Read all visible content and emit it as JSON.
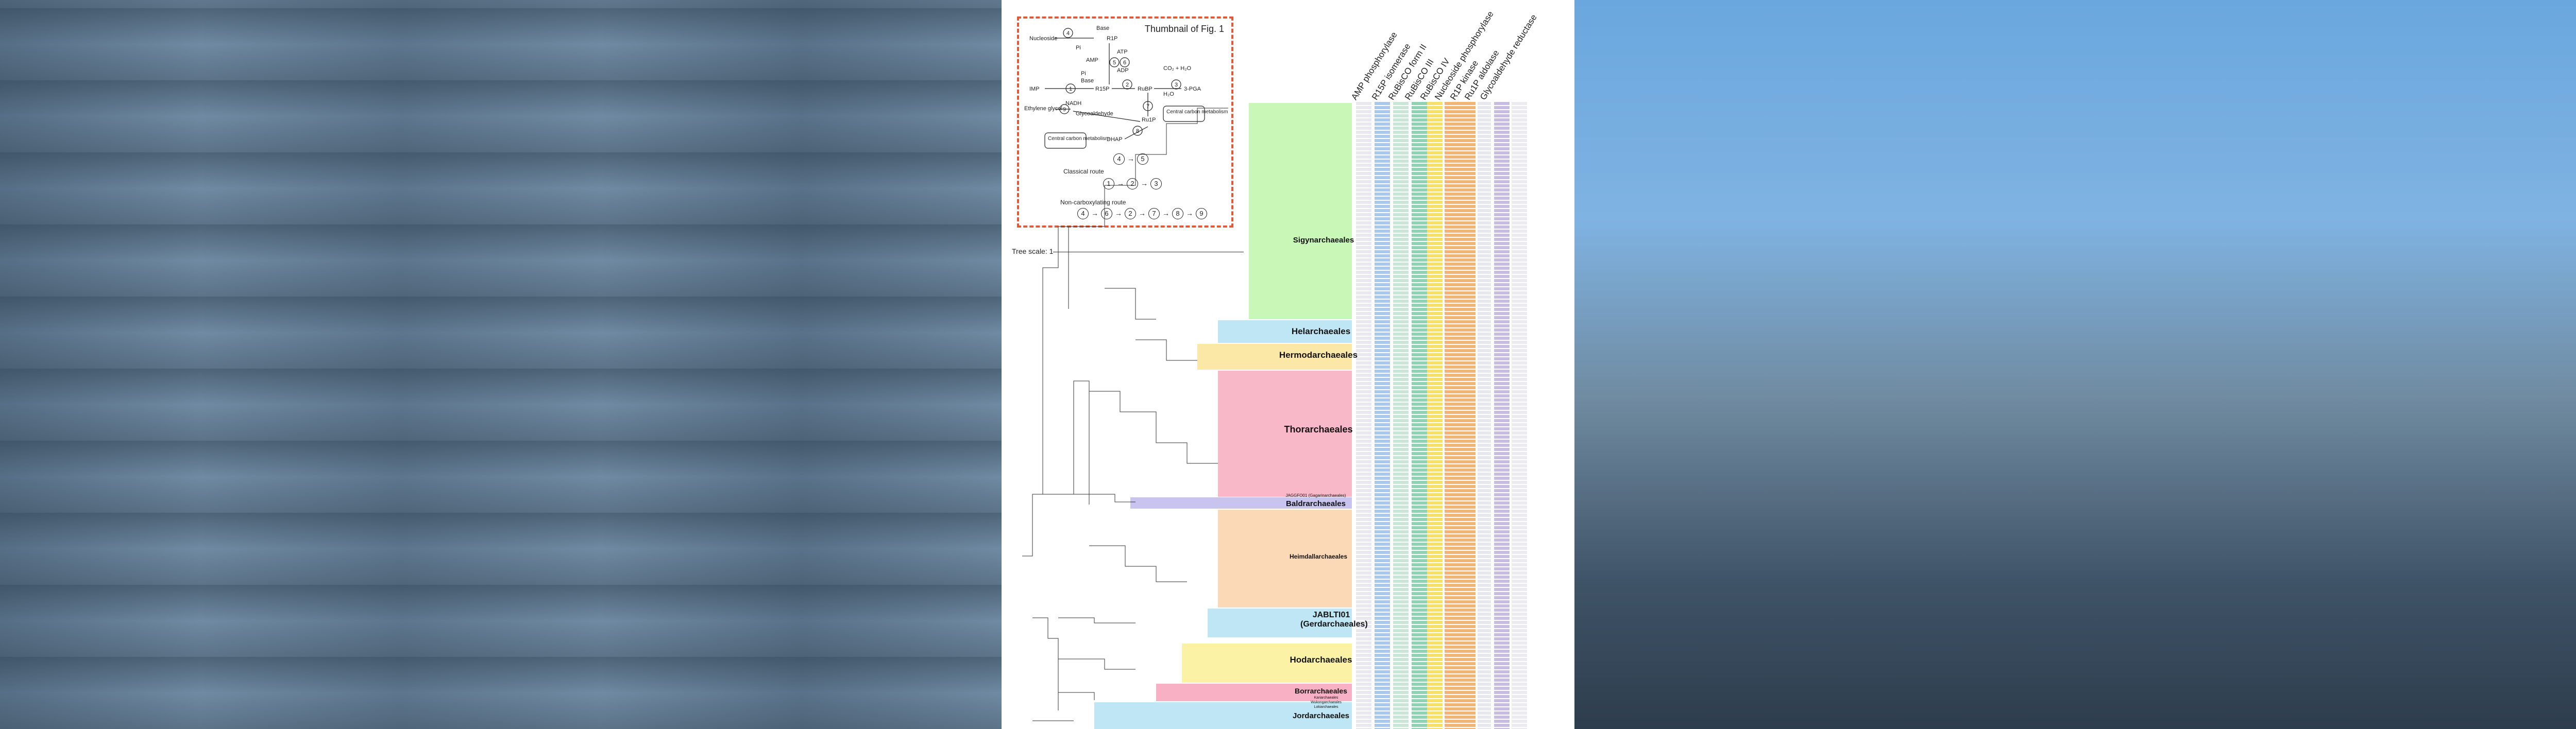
{
  "thumbnail": {
    "title": "Thumbnail of Fig. 1",
    "labels": {
      "nucleoside": "Nucleoside",
      "base": "Base",
      "r1p": "R1P",
      "pi": "Pi",
      "amp": "AMP",
      "atp": "ATP",
      "adp": "ADP",
      "pi2": "Pi",
      "base2": "Base",
      "r15p": "R15P",
      "co2": "CO₂ + H₂O",
      "pga": "3-PGA",
      "rubp": "RuBP",
      "h2o": "H₂O",
      "nadh": "NADH",
      "nad": "NAD⁺",
      "ethylene": "Ethylene glycol",
      "glycoaldehyde": "Glycoaldehyde",
      "central1": "Central carbon metabolism",
      "central2": "Central carbon metabolism",
      "dhap": "DHAP",
      "ru1p": "Ru1P",
      "imp": "IMP"
    },
    "classical_route": "Classical route",
    "noncarboxylating_route": "Non-carboxylating route"
  },
  "tree_scale": "Tree scale: 1",
  "columns": [
    {
      "num": "1",
      "name": "AMP phosphorylase",
      "color": "#e8e8ee"
    },
    {
      "num": "2",
      "name": "R15P isomerase",
      "color": "#aac8ea"
    },
    {
      "num": "3",
      "name": "RuBisCO form II",
      "color": "#c9e6d7"
    },
    {
      "num": "3",
      "name": "RuBisCO III",
      "color": "#8fd3b3"
    },
    {
      "num": "3",
      "name": "RuBisCO IV",
      "color": "#f5e06a"
    },
    {
      "num": "4",
      "name": "Nucleoside phosphorylase",
      "color": "#f3b47a"
    },
    {
      "num": "5",
      "name": "R1P kinase",
      "color": "#e7e7ef"
    },
    {
      "num": "6",
      "name": "Ru1P aldolase",
      "color": "#c6bde0"
    },
    {
      "num": "7",
      "name": "Glycoaldehyde reductase",
      "color": "#ecebf0"
    }
  ],
  "clades": [
    {
      "name": "Sigynarchaeales",
      "color": "#c8f7b8"
    },
    {
      "name": "Helarchaeales",
      "color": "#bfe6f4"
    },
    {
      "name": "Hermodarchaeales",
      "color": "#fbe8a6"
    },
    {
      "name": "Thorarchaeales",
      "color": "#f9b8c8"
    },
    {
      "name": "JAGGFO01 (Gagarinarchaeales)",
      "color": "#c9c3ef"
    },
    {
      "name": "Baldrarchaeales",
      "color": "#c9c3ef"
    },
    {
      "name": "Heimdallarchaeales",
      "color": "#fbd9b6"
    },
    {
      "name": "JABLTI01 (Gerdarchaeales)",
      "color": "#bfe6f4"
    },
    {
      "name": "Hodarchaeales",
      "color": "#fbf2a6"
    },
    {
      "name": "Borrarchaeales",
      "color": "#f7b0c4"
    },
    {
      "name": "Kariarchaeales",
      "color": "#c9c3ef"
    },
    {
      "name": "Wukongarchaeales",
      "color": "#c9c3ef"
    },
    {
      "name": "Lokiarchaeales",
      "color": "#c9c3ef"
    },
    {
      "name": "Jordarchaeales",
      "color": "#bfe6f4"
    }
  ]
}
